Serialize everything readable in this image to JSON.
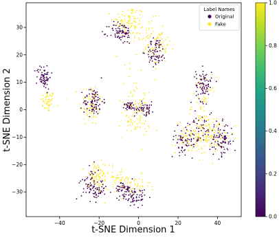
{
  "chart_data": {
    "type": "scatter",
    "title": "",
    "xlabel": "t-SNE Dimension 1",
    "ylabel": "t-SNE Dimension 2",
    "xlim": [
      -57,
      52
    ],
    "ylim": [
      -39,
      39
    ],
    "xticks": [
      -40,
      -20,
      0,
      20,
      40
    ],
    "yticks": [
      -30,
      -20,
      -10,
      0,
      10,
      20,
      30
    ],
    "grid": false,
    "legend": {
      "title": "Label Names",
      "placement": "top-right",
      "entries": [
        {
          "label": "Original",
          "color": "#440154"
        },
        {
          "label": "Fake",
          "color": "#fde725"
        }
      ]
    },
    "colorbar": {
      "colormap": "viridis",
      "range": [
        0.0,
        1.0
      ],
      "ticks": [
        "0.0",
        "0.2",
        "0.4",
        "0.6",
        "0.8",
        "1.0"
      ]
    },
    "series": [
      {
        "name": "Original",
        "value": 0,
        "color": "#440154",
        "clusters": [
          {
            "cx": -48,
            "cy": 12,
            "sx": 1.8,
            "sy": 2.2,
            "n": 70
          },
          {
            "cx": -23,
            "cy": 3,
            "sx": 2.5,
            "sy": 2.5,
            "n": 80
          },
          {
            "cx": -9,
            "cy": 28,
            "sx": 3,
            "sy": 2,
            "n": 80
          },
          {
            "cx": 9,
            "cy": 21,
            "sx": 2.5,
            "sy": 2.5,
            "n": 70
          },
          {
            "cx": -5,
            "cy": 1.5,
            "sx": 1.5,
            "sy": 0.8,
            "n": 30
          },
          {
            "cx": 3,
            "cy": 0.5,
            "sx": 2.5,
            "sy": 1.2,
            "n": 50
          },
          {
            "cx": 33,
            "cy": 9,
            "sx": 2,
            "sy": 3,
            "n": 80
          },
          {
            "cx": 24,
            "cy": -11,
            "sx": 4,
            "sy": 2.5,
            "n": 70
          },
          {
            "cx": 42,
            "cy": -11,
            "sx": 3,
            "sy": 3,
            "n": 90
          },
          {
            "cx": 32,
            "cy": -5,
            "sx": 3,
            "sy": 3,
            "n": 30
          },
          {
            "cx": -24,
            "cy": -27,
            "sx": 2.5,
            "sy": 3,
            "n": 60
          },
          {
            "cx": -20,
            "cy": -30,
            "sx": 2,
            "sy": 1.5,
            "n": 30
          },
          {
            "cx": -7,
            "cy": -29,
            "sx": 2.5,
            "sy": 1.5,
            "n": 50
          },
          {
            "cx": -2,
            "cy": -32,
            "sx": 3,
            "sy": 1.5,
            "n": 60
          }
        ]
      },
      {
        "name": "Fake",
        "value": 1,
        "color": "#fde725",
        "clusters": [
          {
            "cx": -46,
            "cy": 3,
            "sx": 1.8,
            "sy": 2,
            "n": 50
          },
          {
            "cx": -24,
            "cy": 2,
            "sx": 3,
            "sy": 4,
            "n": 70
          },
          {
            "cx": -5,
            "cy": 32,
            "sx": 4,
            "sy": 3,
            "n": 90
          },
          {
            "cx": 5,
            "cy": 27,
            "sx": 4,
            "sy": 3,
            "n": 60
          },
          {
            "cx": 11,
            "cy": 22,
            "sx": 3,
            "sy": 3,
            "n": 40
          },
          {
            "cx": -1,
            "cy": 6,
            "sx": 4,
            "sy": 6,
            "n": 40
          },
          {
            "cx": -2,
            "cy": -3,
            "sx": 4,
            "sy": 4,
            "n": 70
          },
          {
            "cx": 33,
            "cy": 2,
            "sx": 3,
            "sy": 5,
            "n": 60
          },
          {
            "cx": 31,
            "cy": -10,
            "sx": 6,
            "sy": 3,
            "n": 140
          },
          {
            "cx": 39,
            "cy": -8,
            "sx": 3,
            "sy": 3,
            "n": 40
          },
          {
            "cx": -21,
            "cy": -25,
            "sx": 3,
            "sy": 3,
            "n": 80
          },
          {
            "cx": -10,
            "cy": -25,
            "sx": 3,
            "sy": 2,
            "n": 40
          },
          {
            "cx": -2,
            "cy": -28,
            "sx": 4,
            "sy": 2,
            "n": 40
          }
        ]
      }
    ]
  }
}
